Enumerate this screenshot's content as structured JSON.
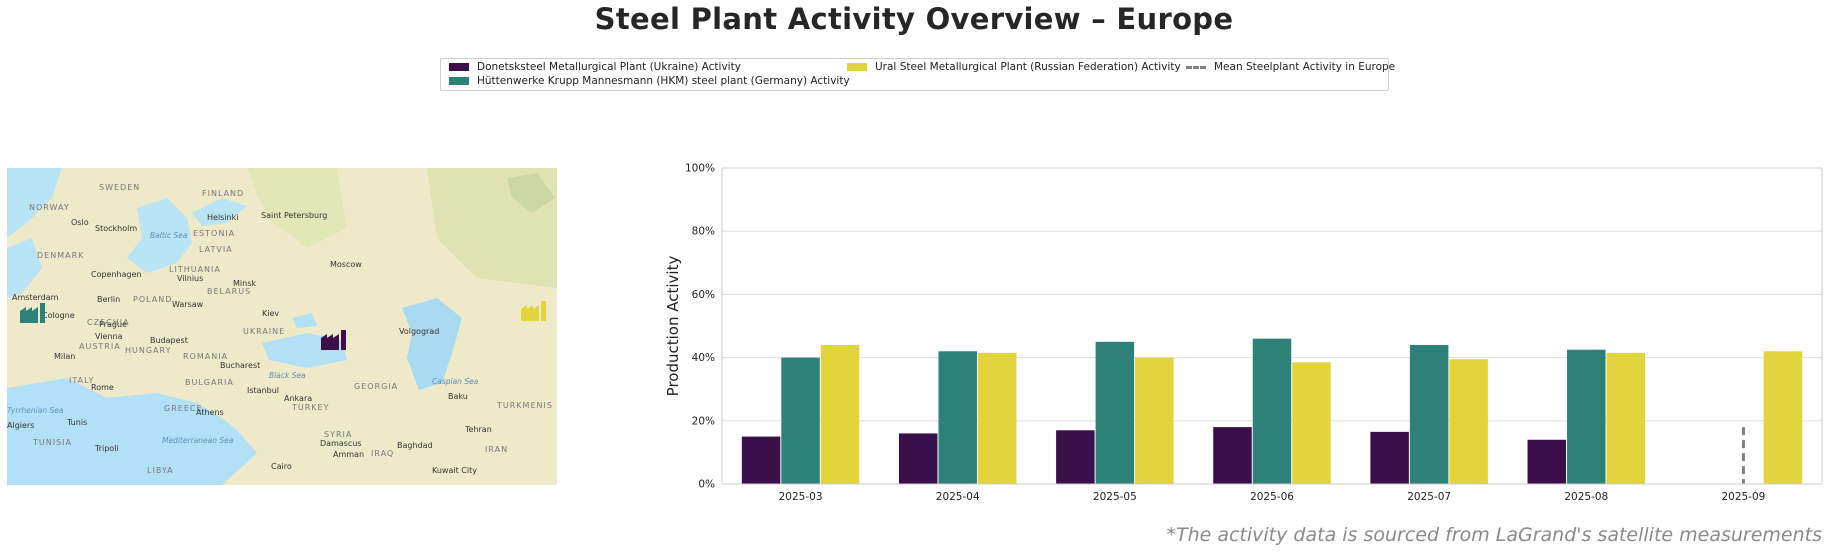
{
  "title": "Steel Plant Activity Overview – Europe",
  "footnote": "*The activity data is sourced from LaGrand's satellite measurements",
  "legend": [
    {
      "label": "Donetsksteel Metallurgical Plant (Ukraine) Activity",
      "color": "#3b0f4a",
      "style": "box"
    },
    {
      "label": "Hüttenwerke Krupp Mannesmann (HKM) steel plant (Germany) Activity",
      "color": "#2e8179",
      "style": "box"
    },
    {
      "label": "Ural Steel Metallurgical Plant (Russian Federation) Activity",
      "color": "#e1d43c",
      "style": "box"
    },
    {
      "label": "Mean Steelplant Activity in Europe",
      "color": "#808080",
      "style": "dashed"
    }
  ],
  "map": {
    "cities": [
      "Oslo",
      "Stockholm",
      "Helsinki",
      "Saint Petersburg",
      "Copenhagen",
      "Vilnius",
      "Minsk",
      "Moscow",
      "Amsterdam",
      "Berlin",
      "Warsaw",
      "Kiev",
      "Cologne",
      "Prague",
      "Vienna",
      "Budapest",
      "Volgograd",
      "Milan",
      "Bucharest",
      "Rome",
      "Istanbul",
      "Ankara",
      "Baku",
      "Athens",
      "Tunis",
      "Tripoli",
      "Tehran",
      "Damascus",
      "Amman",
      "Baghdad",
      "Cairo",
      "Kuwait City",
      "Algiers"
    ],
    "countries": [
      "SWEDEN",
      "FINLAND",
      "NORWAY",
      "ESTONIA",
      "LATVIA",
      "DENMARK",
      "LITHUANIA",
      "BELARUS",
      "POLAND",
      "CZECHIA",
      "UKRAINE",
      "AUSTRIA",
      "HUNGARY",
      "ROMANIA",
      "BULGARIA",
      "ITALY",
      "GREECE",
      "TURKEY",
      "GEORGIA",
      "SYRIA",
      "IRAQ",
      "IRAN",
      "TUNISIA",
      "TURKMENIS",
      "LIBYA"
    ],
    "seas": [
      "Baltic Sea",
      "Black Sea",
      "Caspian Sea",
      "Mediterranean Sea",
      "Tyrrhenian Sea"
    ],
    "markers": [
      {
        "plant": "Hüttenwerke Krupp Mannesmann (HKM) steel plant (Germany)",
        "color": "#2e8179",
        "icon": "factory-icon"
      },
      {
        "plant": "Donetsksteel Metallurgical Plant (Ukraine)",
        "color": "#3b0f4a",
        "icon": "factory-icon"
      },
      {
        "plant": "Ural Steel Metallurgical Plant (Russian Federation)",
        "color": "#e1d43c",
        "icon": "factory-icon"
      }
    ]
  },
  "chart_data": {
    "type": "bar",
    "ylabel": "Production Activity",
    "xlabel": "",
    "ylim": [
      0,
      100
    ],
    "yticks": [
      "0%",
      "20%",
      "40%",
      "60%",
      "80%",
      "100%"
    ],
    "grid": true,
    "legend_position": "top-center",
    "categories": [
      "2025-03",
      "2025-04",
      "2025-05",
      "2025-06",
      "2025-07",
      "2025-08",
      "2025-09"
    ],
    "series": [
      {
        "name": "Donetsksteel Metallurgical Plant (Ukraine) Activity",
        "color": "#3b0f4a",
        "values": [
          15,
          16,
          17,
          18,
          16.5,
          14,
          null
        ]
      },
      {
        "name": "Hüttenwerke Krupp Mannesmann (HKM) steel plant (Germany) Activity",
        "color": "#2e8179",
        "values": [
          40,
          42,
          45,
          46,
          44,
          42.5,
          null
        ]
      },
      {
        "name": "Ural Steel Metallurgical Plant (Russian Federation) Activity",
        "color": "#e1d43c",
        "values": [
          44,
          41.5,
          40,
          38.5,
          39.5,
          41.5,
          42
        ]
      }
    ],
    "mean_line": {
      "name": "Mean Steelplant Activity in Europe",
      "category": "2025-09",
      "value": 18,
      "color": "#808080"
    }
  }
}
